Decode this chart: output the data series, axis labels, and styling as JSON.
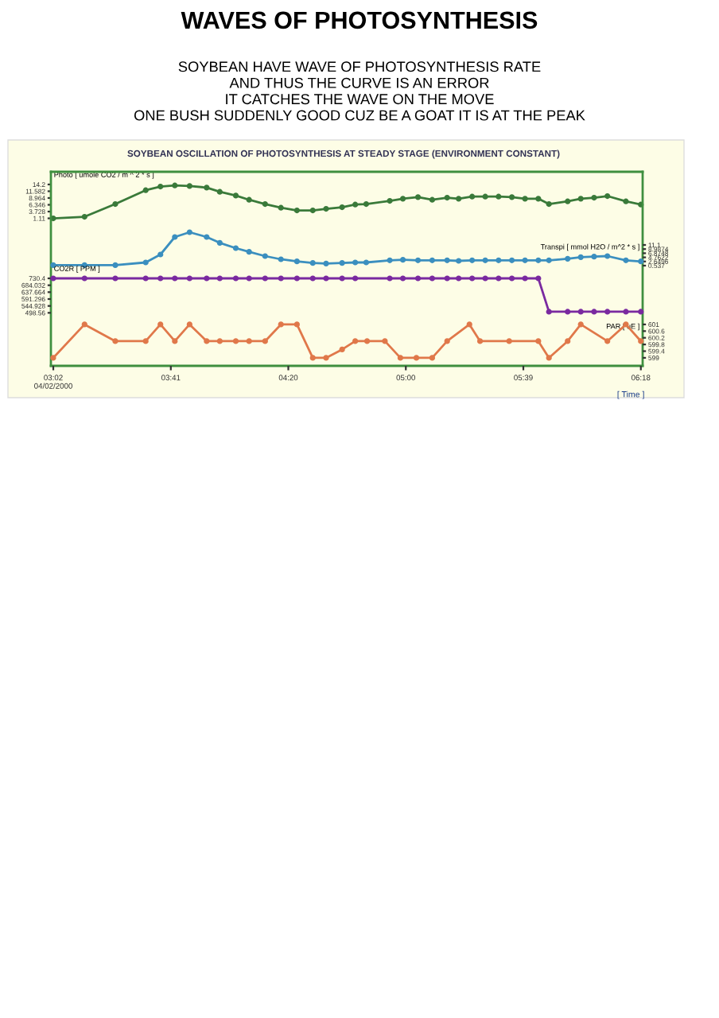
{
  "chart_data": [
    {
      "type": "line",
      "title": "WAVES OF PHOTOSYNTHESIS",
      "subtitle": "SOYBEAN HAVE WAVE OF PHOTOSYNTHESIS RATE\nAND THUS THE CURVE IS AN ERROR\nIT CATCHES THE WAVE ON THE MOVE\nONE BUSH SUDDENLY GOOD CUZ BE A GOAT IT IS AT THE PEAK",
      "annotations": [
        "SOYBEAN OSCILLATION OF PHOTOSYNTHESIS AT STEADY STAGE (ENVIRONMENT CONSTANT)"
      ],
      "ylabel": "Photo [ umole CO2 / m ^ 2 * s ]",
      "marker": "circle",
      "tick_labels": "y",
      "xlim": [
        3.02,
        6.31
      ],
      "ylim": [
        -55.9,
        19.1
      ],
      "yticks": [
        1.11,
        3.728,
        6.346,
        8.964,
        11.582,
        14.2
      ],
      "series": [
        {
          "color": "#3a7a3a",
          "x": [
            3.033,
            3.207,
            3.378,
            3.547,
            3.629,
            3.709,
            3.791,
            3.886,
            3.959,
            4.048,
            4.122,
            4.211,
            4.299,
            4.388,
            4.476,
            4.55,
            4.639,
            4.712,
            4.773,
            4.904,
            4.977,
            5.061,
            5.14,
            5.223,
            5.287,
            5.362,
            5.435,
            5.509,
            5.583,
            5.656,
            5.73,
            5.789,
            5.893,
            5.966,
            6.04,
            6.114,
            6.217,
            6.3
          ],
          "values": [
            1.11,
            1.72,
            6.64,
            11.97,
            13.4,
            13.81,
            13.61,
            12.99,
            11.36,
            9.92,
            8.28,
            6.64,
            5.21,
            4.18,
            4.18,
            4.8,
            5.41,
            6.44,
            6.64,
            7.87,
            8.69,
            9.31,
            8.28,
            9.1,
            8.69,
            9.51,
            9.51,
            9.51,
            9.31,
            8.69,
            8.69,
            6.64,
            7.67,
            8.69,
            9.1,
            9.72,
            7.67,
            6.44
          ]
        }
      ]
    },
    {
      "type": "line",
      "y2label": "Transpi [ mmol H2O / m^2 * s ]",
      "marker": "circle",
      "tick_labels": "y2",
      "xlim": [
        3.02,
        6.31
      ],
      "y2lim": [
        -50.65,
        48.47
      ],
      "y2ticks": [
        0.537,
        2.6496,
        4.7622,
        6.8748,
        8.9874,
        11.1
      ],
      "series": [
        {
          "color": "#3b8fbf",
          "axis": "y2",
          "x": [
            3.033,
            3.207,
            3.378,
            3.547,
            3.629,
            3.709,
            3.791,
            3.886,
            3.959,
            4.048,
            4.122,
            4.211,
            4.299,
            4.388,
            4.476,
            4.55,
            4.639,
            4.712,
            4.773,
            4.904,
            4.977,
            5.061,
            5.14,
            5.223,
            5.287,
            5.362,
            5.435,
            5.509,
            5.583,
            5.656,
            5.73,
            5.789,
            5.893,
            5.966,
            6.04,
            6.114,
            6.217,
            6.3
          ],
          "values": [
            0.81,
            0.81,
            0.81,
            2.16,
            6.22,
            15.16,
            17.6,
            15.16,
            12.18,
            9.47,
            7.58,
            5.41,
            3.79,
            2.7,
            1.89,
            1.62,
            1.89,
            2.16,
            2.16,
            3.25,
            3.52,
            3.25,
            3.25,
            3.25,
            2.97,
            3.25,
            3.25,
            3.25,
            3.25,
            3.25,
            3.25,
            3.25,
            4.06,
            4.87,
            5.14,
            5.41,
            3.25,
            2.7
          ]
        }
      ]
    },
    {
      "type": "line",
      "ylabel": "CO2R [ PPM ]",
      "marker": "circle",
      "tick_labels": "y",
      "xlim": [
        3.02,
        6.31
      ],
      "ylim": [
        141.9,
        1447.3
      ],
      "yticks": [
        498.56,
        544.928,
        591.296,
        637.664,
        684.032,
        730.4
      ],
      "series": [
        {
          "color": "#7a2aa0",
          "x": [
            3.033,
            3.207,
            3.378,
            3.547,
            3.629,
            3.709,
            3.791,
            3.886,
            3.959,
            4.048,
            4.122,
            4.211,
            4.299,
            4.388,
            4.476,
            4.55,
            4.639,
            4.712,
            4.904,
            4.977,
            5.061,
            5.14,
            5.223,
            5.287,
            5.362,
            5.435,
            5.509,
            5.583,
            5.656,
            5.73,
            5.789,
            5.893,
            5.966,
            6.04,
            6.114,
            6.217,
            6.3
          ],
          "values": [
            730.4,
            730.4,
            730.4,
            730.4,
            730.4,
            730.4,
            730.4,
            730.4,
            730.4,
            730.4,
            730.4,
            730.4,
            730.4,
            730.4,
            730.4,
            730.4,
            730.4,
            730.4,
            730.4,
            730.4,
            730.4,
            730.4,
            730.4,
            730.4,
            730.4,
            730.4,
            730.4,
            730.4,
            730.4,
            730.4,
            506,
            506,
            506,
            506,
            506,
            506,
            506
          ]
        }
      ]
    },
    {
      "type": "line",
      "y2label": "PAR [ uE ]",
      "xlabel": "[ Time ]",
      "marker": "circle",
      "xlim": [
        3.02,
        6.31
      ],
      "xticks": [
        {
          "value": 3.0333,
          "label": "03:02\n04/02/2000"
        },
        {
          "value": 3.6867,
          "label": "03:41"
        },
        {
          "value": 4.34,
          "label": "04:20"
        },
        {
          "value": 4.9933,
          "label": "05:00"
        },
        {
          "value": 5.6467,
          "label": "05:39"
        },
        {
          "value": 6.3,
          "label": "06:18"
        }
      ],
      "y2lim": [
        598.52,
        610.14
      ],
      "y2ticks": [
        599,
        599.4,
        599.8,
        600.2,
        600.6,
        601
      ],
      "series": [
        {
          "color": "#e0784a",
          "axis": "y2",
          "x": [
            3.033,
            3.207,
            3.378,
            3.547,
            3.629,
            3.709,
            3.791,
            3.886,
            3.959,
            4.048,
            4.122,
            4.211,
            4.299,
            4.388,
            4.476,
            4.55,
            4.639,
            4.712,
            4.778,
            4.877,
            4.963,
            5.052,
            5.14,
            5.223,
            5.347,
            5.406,
            5.568,
            5.73,
            5.789,
            5.893,
            5.966,
            6.114,
            6.217,
            6.3
          ],
          "values": [
            599,
            601,
            600,
            600,
            601,
            600,
            601,
            600,
            600,
            600,
            600,
            600,
            601,
            601,
            599,
            599,
            599.5,
            600,
            600,
            600,
            599,
            599,
            599,
            600,
            601,
            600,
            600,
            600,
            599,
            600,
            601,
            600,
            601,
            600
          ]
        }
      ]
    }
  ]
}
